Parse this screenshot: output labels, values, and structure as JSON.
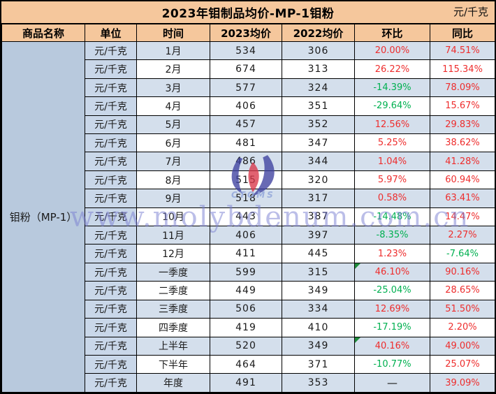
{
  "chart_data": {
    "type": "table",
    "title": "2023年钼制品均价-MP-1钼粉",
    "unit_note": "元/千克",
    "columns": [
      "商品名称",
      "单位",
      "时间",
      "2023均价",
      "2022均价",
      "环比",
      "同比"
    ],
    "product": "钼粉（MP-1）",
    "unit": "元/千克",
    "rows": [
      {
        "time": "1月",
        "p2023": 534,
        "p2022": 306,
        "mom": "20.00%",
        "mom_dir": "up",
        "yoy": "74.51%",
        "yoy_dir": "up",
        "marker": false
      },
      {
        "time": "2月",
        "p2023": 674,
        "p2022": 313,
        "mom": "26.22%",
        "mom_dir": "up",
        "yoy": "115.34%",
        "yoy_dir": "up",
        "marker": false
      },
      {
        "time": "3月",
        "p2023": 577,
        "p2022": 324,
        "mom": "-14.39%",
        "mom_dir": "down",
        "yoy": "78.09%",
        "yoy_dir": "up",
        "marker": false
      },
      {
        "time": "4月",
        "p2023": 406,
        "p2022": 351,
        "mom": "-29.64%",
        "mom_dir": "down",
        "yoy": "15.67%",
        "yoy_dir": "up",
        "marker": false
      },
      {
        "time": "5月",
        "p2023": 457,
        "p2022": 352,
        "mom": "12.56%",
        "mom_dir": "up",
        "yoy": "29.83%",
        "yoy_dir": "up",
        "marker": false
      },
      {
        "time": "6月",
        "p2023": 481,
        "p2022": 347,
        "mom": "5.25%",
        "mom_dir": "up",
        "yoy": "38.62%",
        "yoy_dir": "up",
        "marker": false
      },
      {
        "time": "7月",
        "p2023": 486,
        "p2022": 344,
        "mom": "1.04%",
        "mom_dir": "up",
        "yoy": "41.28%",
        "yoy_dir": "up",
        "marker": false
      },
      {
        "time": "8月",
        "p2023": 515,
        "p2022": 320,
        "mom": "5.97%",
        "mom_dir": "up",
        "yoy": "60.94%",
        "yoy_dir": "up",
        "marker": false
      },
      {
        "time": "9月",
        "p2023": 518,
        "p2022": 317,
        "mom": "0.58%",
        "mom_dir": "up",
        "yoy": "63.41%",
        "yoy_dir": "up",
        "marker": false
      },
      {
        "time": "10月",
        "p2023": 443,
        "p2022": 387,
        "mom": "-14.48%",
        "mom_dir": "down",
        "yoy": "14.47%",
        "yoy_dir": "up",
        "marker": false
      },
      {
        "time": "11月",
        "p2023": 406,
        "p2022": 397,
        "mom": "-8.35%",
        "mom_dir": "down",
        "yoy": "2.27%",
        "yoy_dir": "up",
        "marker": false
      },
      {
        "time": "12月",
        "p2023": 411,
        "p2022": 445,
        "mom": "1.23%",
        "mom_dir": "up",
        "yoy": "-7.64%",
        "yoy_dir": "down",
        "marker": false
      },
      {
        "time": "一季度",
        "p2023": 599,
        "p2022": 315,
        "mom": "46.10%",
        "mom_dir": "up",
        "yoy": "90.16%",
        "yoy_dir": "up",
        "marker": true
      },
      {
        "time": "二季度",
        "p2023": 449,
        "p2022": 349,
        "mom": "-25.04%",
        "mom_dir": "down",
        "yoy": "28.65%",
        "yoy_dir": "up",
        "marker": false
      },
      {
        "time": "三季度",
        "p2023": 506,
        "p2022": 334,
        "mom": "12.69%",
        "mom_dir": "up",
        "yoy": "51.50%",
        "yoy_dir": "up",
        "marker": false
      },
      {
        "time": "四季度",
        "p2023": 419,
        "p2022": 410,
        "mom": "-17.19%",
        "mom_dir": "down",
        "yoy": "2.20%",
        "yoy_dir": "up",
        "marker": false
      },
      {
        "time": "上半年",
        "p2023": 520,
        "p2022": 349,
        "mom": "40.16%",
        "mom_dir": "up",
        "yoy": "49.00%",
        "yoy_dir": "up",
        "marker": true
      },
      {
        "time": "下半年",
        "p2023": 464,
        "p2022": 371,
        "mom": "-10.77%",
        "mom_dir": "down",
        "yoy": "25.07%",
        "yoy_dir": "up",
        "marker": false
      },
      {
        "time": "年度",
        "p2023": 491,
        "p2022": 353,
        "mom": "—",
        "mom_dir": "flat",
        "yoy": "39.09%",
        "yoy_dir": "up",
        "marker": false
      }
    ]
  },
  "watermark": {
    "url_text": "www.molybdenum.com.cn",
    "logo_text": "CTOMS"
  },
  "colors": {
    "header_bg": "#f5c79c",
    "product_col_bg": "#b8c9dd",
    "unit_col_bg": "#c9d7e9",
    "stripe_row_bg": "#d4dfec",
    "positive_red": "#ee2d2d",
    "negative_green": "#00b050",
    "note_marker_green": "#1f8c3b",
    "watermark_purple": "#7a7fd2",
    "border_black": "#000000"
  }
}
